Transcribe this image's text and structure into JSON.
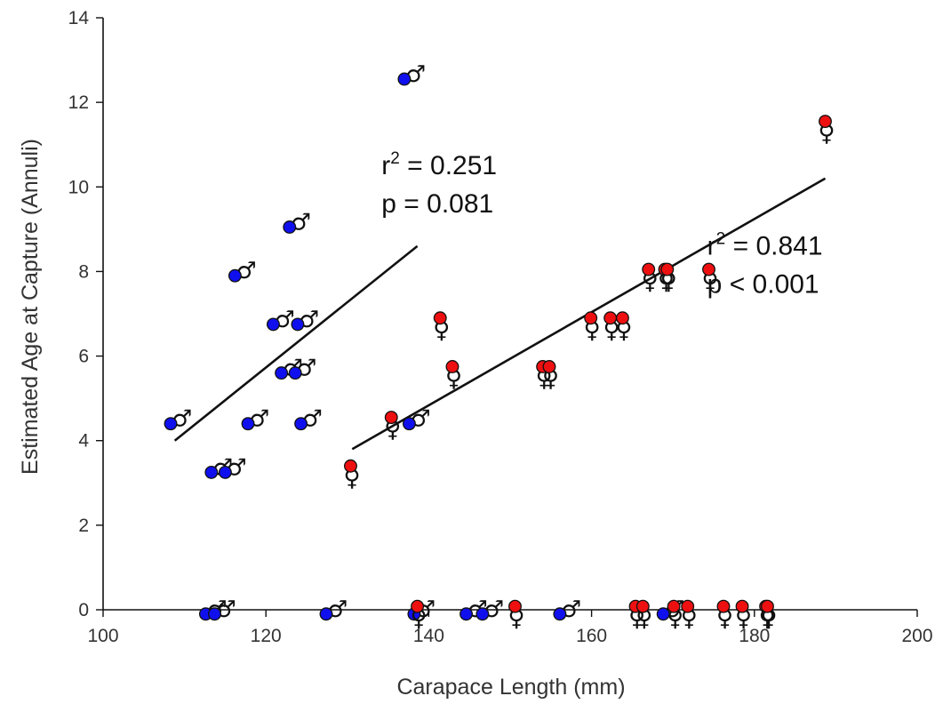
{
  "chart_data": {
    "type": "scatter",
    "title": "",
    "xlabel": "Carapace Length (mm)",
    "ylabel": "Estimated Age at Capture (Annuli)",
    "xlim": [
      100,
      200
    ],
    "ylim": [
      0,
      14
    ],
    "xticks": [
      "100",
      "120",
      "140",
      "160",
      "180",
      "200"
    ],
    "yticks": [
      "0",
      "2",
      "4",
      "6",
      "8",
      "10",
      "12",
      "14"
    ],
    "grid": false,
    "colors": {
      "male": "#1010ee",
      "female": "#ee1010",
      "line": "#111111"
    },
    "series": [
      {
        "symbol": "♂",
        "color": "#1010ee",
        "points": [
          {
            "x": 108.3,
            "y": 4.4
          },
          {
            "x": 113.3,
            "y": 3.25
          },
          {
            "x": 115.0,
            "y": 3.25
          },
          {
            "x": 116.2,
            "y": 7.9
          },
          {
            "x": 117.8,
            "y": 4.4
          },
          {
            "x": 120.9,
            "y": 6.75
          },
          {
            "x": 121.9,
            "y": 5.6
          },
          {
            "x": 122.9,
            "y": 9.05
          },
          {
            "x": 123.6,
            "y": 5.6
          },
          {
            "x": 123.9,
            "y": 6.75
          },
          {
            "x": 124.3,
            "y": 4.4
          },
          {
            "x": 137.0,
            "y": 12.55
          },
          {
            "x": 137.6,
            "y": 4.4
          },
          {
            "x": 112.6,
            "y": -0.1
          },
          {
            "x": 113.7,
            "y": -0.1
          },
          {
            "x": 127.4,
            "y": -0.1
          },
          {
            "x": 138.2,
            "y": -0.1
          },
          {
            "x": 144.6,
            "y": -0.1
          },
          {
            "x": 146.6,
            "y": -0.1
          },
          {
            "x": 156.1,
            "y": -0.1
          },
          {
            "x": 168.8,
            "y": -0.1
          }
        ]
      },
      {
        "symbol": "♀",
        "color": "#ee1010",
        "points": [
          {
            "x": 130.4,
            "y": 3.4
          },
          {
            "x": 135.4,
            "y": 4.55
          },
          {
            "x": 141.4,
            "y": 6.9
          },
          {
            "x": 142.9,
            "y": 5.75
          },
          {
            "x": 154.0,
            "y": 5.75
          },
          {
            "x": 154.8,
            "y": 5.75
          },
          {
            "x": 159.9,
            "y": 6.9
          },
          {
            "x": 162.3,
            "y": 6.9
          },
          {
            "x": 163.8,
            "y": 6.9
          },
          {
            "x": 167.0,
            "y": 8.05
          },
          {
            "x": 169.0,
            "y": 8.05
          },
          {
            "x": 169.3,
            "y": 8.05
          },
          {
            "x": 174.4,
            "y": 8.05
          },
          {
            "x": 188.7,
            "y": 11.55
          },
          {
            "x": 138.6,
            "y": 0.08
          },
          {
            "x": 150.6,
            "y": 0.08
          },
          {
            "x": 165.4,
            "y": 0.08
          },
          {
            "x": 166.3,
            "y": 0.08
          },
          {
            "x": 170.1,
            "y": 0.08
          },
          {
            "x": 171.8,
            "y": 0.08
          },
          {
            "x": 176.2,
            "y": 0.08
          },
          {
            "x": 178.5,
            "y": 0.08
          },
          {
            "x": 181.4,
            "y": 0.08
          },
          {
            "x": 181.6,
            "y": 0.08
          }
        ]
      }
    ],
    "fit_lines": [
      {
        "x1": 108.8,
        "y1": 4.0,
        "x2": 138.6,
        "y2": 8.6
      },
      {
        "x1": 130.6,
        "y1": 3.8,
        "x2": 188.7,
        "y2": 10.2
      }
    ],
    "annotations": [
      {
        "r_text": "r",
        "sup": "2",
        "r_value": " = 0.251",
        "p_text": "p = 0.081",
        "anchor_x": 134.2,
        "anchor_y": 10.3
      },
      {
        "r_text": "r",
        "sup": "2",
        "r_value": " = 0.841",
        "p_text": "p < 0.001",
        "anchor_x": 174.2,
        "anchor_y": 8.4
      }
    ]
  }
}
